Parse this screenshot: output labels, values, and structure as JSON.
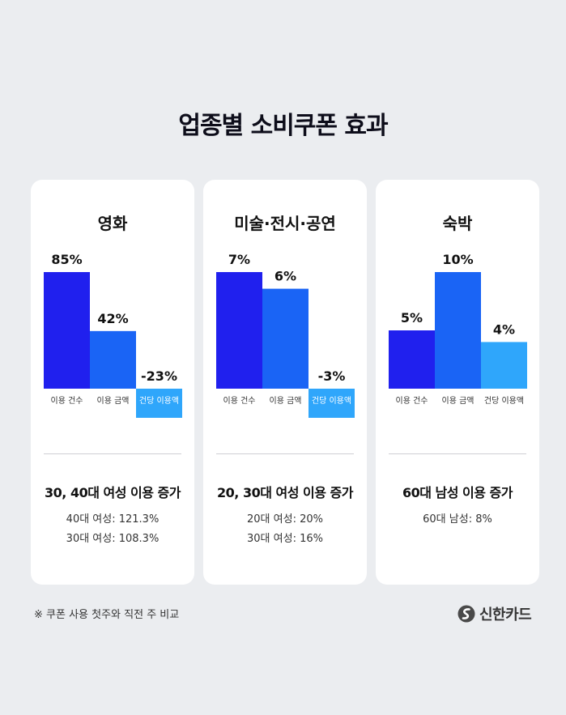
{
  "title": "업종별 소비쿠폰 효과",
  "colors": {
    "count": "#2020ee",
    "amount": "#1a64f5",
    "per": "#2fa6fb",
    "card": "#ffffff",
    "background": "#ebedf0"
  },
  "chart_data": [
    {
      "type": "bar",
      "title": "영화",
      "categories": [
        "이용 건수",
        "이용 금액",
        "건당 이용액"
      ],
      "values": [
        85,
        42,
        -23
      ],
      "value_labels": [
        "85%",
        "42%",
        "-23%"
      ],
      "unit": "%"
    },
    {
      "type": "bar",
      "title": "미술·전시·공연",
      "categories": [
        "이용 건수",
        "이용 금액",
        "건당 이용액"
      ],
      "values": [
        7,
        6,
        -3
      ],
      "value_labels": [
        "7%",
        "6%",
        "-3%"
      ],
      "unit": "%"
    },
    {
      "type": "bar",
      "title": "숙박",
      "categories": [
        "이용 건수",
        "이용 금액",
        "건당 이용액"
      ],
      "values": [
        5,
        10,
        4
      ],
      "value_labels": [
        "5%",
        "10%",
        "4%"
      ],
      "unit": "%"
    }
  ],
  "cards": [
    {
      "headline": "30, 40대 여성 이용 증가",
      "details": [
        "40대 여성: 121.3%",
        "30대 여성: 108.3%"
      ]
    },
    {
      "headline": "20, 30대 여성 이용 증가",
      "details": [
        "20대 여성: 20%",
        "30대 여성: 16%"
      ]
    },
    {
      "headline": "60대 남성 이용 증가",
      "details": [
        "60대 남성: 8%"
      ]
    }
  ],
  "footnote": "※ 쿠폰 사용 첫주와 직전 주 비교",
  "brand": {
    "name": "신한카드",
    "icon": "shinhan-logo-icon"
  }
}
